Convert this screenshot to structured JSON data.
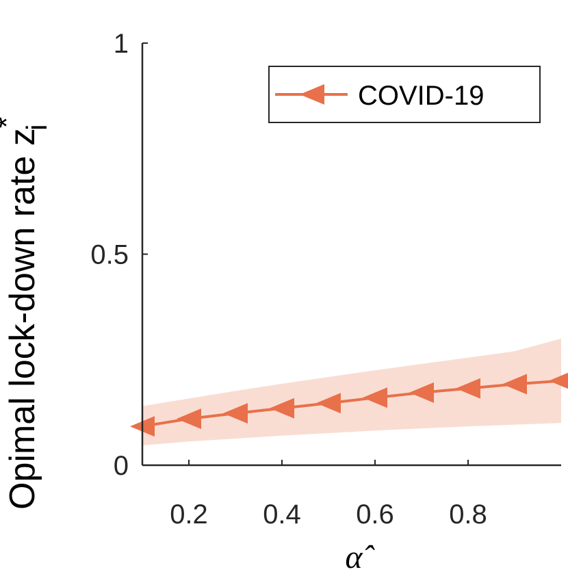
{
  "chart_data": {
    "type": "line",
    "title": "",
    "xlabel": "α̂",
    "ylabel": "Opimal lock-down rate z",
    "ylabel_superscript": "*",
    "ylabel_subscript": "i",
    "xlim": [
      0.1,
      1.0
    ],
    "ylim": [
      0,
      1
    ],
    "xticks": [
      0.2,
      0.4,
      0.6,
      0.8
    ],
    "xtick_labels": [
      "0.2",
      "0.4",
      "0.6",
      "0.8"
    ],
    "yticks": [
      0,
      0.5,
      1
    ],
    "ytick_labels": [
      "0",
      "0.5",
      "1"
    ],
    "grid": false,
    "legend_position": "top-right",
    "series": [
      {
        "name": "COVID-19",
        "color": "#E8704A",
        "band_color": "#F9DDD3",
        "marker": "left-triangle",
        "x": [
          0.1,
          0.2,
          0.3,
          0.4,
          0.5,
          0.6,
          0.7,
          0.8,
          0.9,
          1.0
        ],
        "values": [
          0.092,
          0.11,
          0.123,
          0.135,
          0.147,
          0.16,
          0.172,
          0.182,
          0.192,
          0.2
        ],
        "band_upper": [
          0.14,
          0.158,
          0.176,
          0.193,
          0.209,
          0.225,
          0.24,
          0.255,
          0.27,
          0.3
        ],
        "band_lower": [
          0.047,
          0.056,
          0.063,
          0.07,
          0.076,
          0.082,
          0.087,
          0.092,
          0.096,
          0.1
        ]
      }
    ]
  }
}
